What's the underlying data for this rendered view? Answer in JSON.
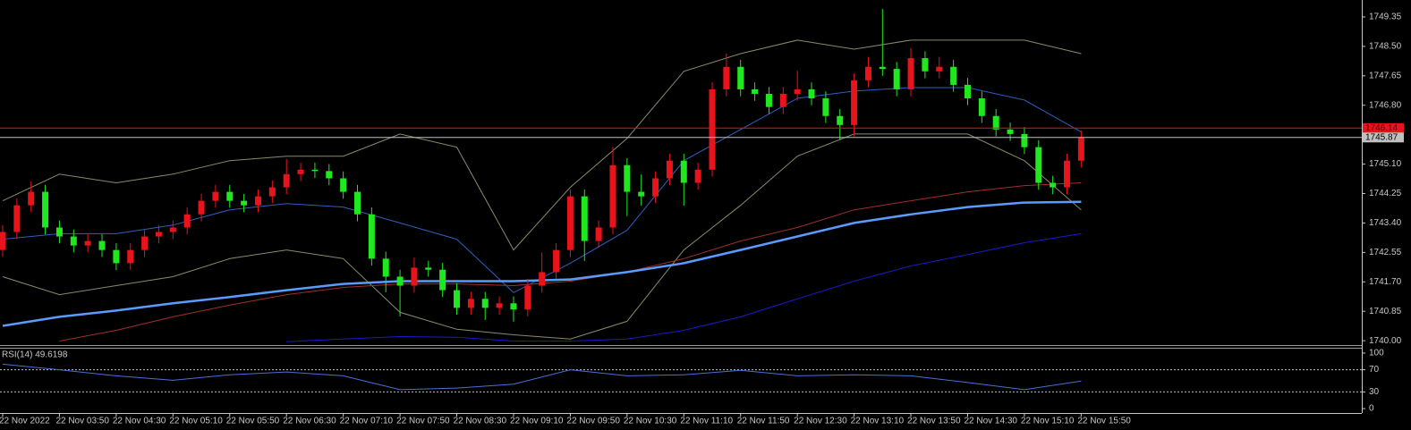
{
  "chart_data": {
    "type": "candlestick",
    "categories": [
      "22 Nov 2022",
      null,
      null,
      null,
      "22 Nov 03:50",
      null,
      null,
      null,
      "22 Nov 04:30",
      null,
      null,
      null,
      "22 Nov 05:10",
      null,
      null,
      null,
      "22 Nov 05:50",
      null,
      null,
      null,
      "22 Nov 06:30",
      null,
      null,
      null,
      "22 Nov 07:10",
      null,
      null,
      null,
      "22 Nov 07:50",
      null,
      null,
      null,
      "22 Nov 08:30",
      null,
      null,
      null,
      "22 Nov 09:10",
      null,
      null,
      null,
      "22 Nov 09:50",
      null,
      null,
      null,
      "22 Nov 10:30",
      null,
      null,
      null,
      "22 Nov 11:10",
      null,
      null,
      null,
      "22 Nov 11:50",
      null,
      null,
      null,
      "22 Nov 12:30",
      null,
      null,
      null,
      "22 Nov 13:10",
      null,
      null,
      null,
      "22 Nov 13:50",
      null,
      null,
      null,
      "22 Nov 14:30",
      null,
      null,
      null,
      "22 Nov 15:10",
      null,
      null,
      null,
      "22 Nov 15:50"
    ],
    "open": [
      1742.62,
      1743.14,
      1743.91,
      1744.3,
      1743.27,
      1743.01,
      1742.75,
      1742.88,
      1742.62,
      1742.24,
      1742.62,
      1743.01,
      1743.14,
      1743.27,
      1743.65,
      1744.04,
      1744.3,
      1744.04,
      1743.91,
      1744.17,
      1744.43,
      1744.81,
      1744.94,
      1744.9,
      1744.69,
      1744.3,
      1743.65,
      1742.37,
      1741.85,
      1741.59,
      1742.11,
      1742.05,
      1741.46,
      1740.95,
      1741.21,
      1740.95,
      1741.08,
      1740.9,
      1741.59,
      1741.98,
      1742.62,
      1744.17,
      1742.88,
      1743.27,
      1745.07,
      1744.3,
      1744.17,
      1744.69,
      1745.2,
      1744.56,
      1744.94,
      1747.26,
      1747.91,
      1747.26,
      1747.13,
      1746.75,
      1747.13,
      1747.26,
      1747.0,
      1746.49,
      1746.23,
      1747.52,
      1747.91,
      1747.85,
      1747.26,
      1748.16,
      1747.78,
      1747.91,
      1747.39,
      1747.0,
      1746.49,
      1746.1,
      1745.97,
      1745.59,
      1744.56,
      1744.43,
      1745.2
    ],
    "high": [
      1743.34,
      1744.11,
      1744.6,
      1744.5,
      1743.47,
      1743.21,
      1743.08,
      1743.08,
      1742.82,
      1742.82,
      1743.21,
      1743.34,
      1743.47,
      1743.85,
      1744.24,
      1744.5,
      1744.5,
      1744.24,
      1744.37,
      1744.63,
      1745.25,
      1745.14,
      1745.14,
      1745.1,
      1744.89,
      1744.5,
      1743.85,
      1742.57,
      1742.05,
      1742.4,
      1742.31,
      1742.25,
      1741.66,
      1741.41,
      1741.41,
      1741.28,
      1741.28,
      1741.79,
      1742.55,
      1742.82,
      1744.37,
      1744.37,
      1743.47,
      1745.6,
      1745.27,
      1744.8,
      1744.89,
      1745.4,
      1745.4,
      1745.14,
      1747.46,
      1748.3,
      1748.11,
      1747.46,
      1747.33,
      1747.33,
      1747.8,
      1747.46,
      1747.2,
      1746.69,
      1747.72,
      1748.2,
      1749.58,
      1748.05,
      1748.45,
      1748.36,
      1748.2,
      1748.11,
      1747.59,
      1747.2,
      1746.69,
      1746.3,
      1746.17,
      1745.79,
      1744.76,
      1745.4,
      1746.07
    ],
    "low": [
      1742.42,
      1742.94,
      1743.71,
      1743.07,
      1742.81,
      1742.55,
      1742.55,
      1742.42,
      1742.04,
      1742.04,
      1742.42,
      1742.81,
      1742.94,
      1743.07,
      1743.45,
      1743.84,
      1743.84,
      1743.71,
      1743.71,
      1743.97,
      1744.23,
      1744.61,
      1744.7,
      1744.49,
      1744.1,
      1743.45,
      1742.17,
      1741.4,
      1740.7,
      1741.39,
      1741.85,
      1741.26,
      1740.75,
      1740.75,
      1740.6,
      1740.75,
      1740.55,
      1740.7,
      1741.39,
      1741.78,
      1742.42,
      1742.3,
      1742.68,
      1743.07,
      1743.6,
      1743.9,
      1743.97,
      1744.49,
      1743.9,
      1744.36,
      1744.74,
      1747.06,
      1747.06,
      1746.93,
      1746.55,
      1746.55,
      1746.93,
      1746.8,
      1746.29,
      1745.8,
      1745.9,
      1747.32,
      1747.65,
      1747.06,
      1747.06,
      1747.58,
      1747.58,
      1747.19,
      1746.8,
      1746.29,
      1745.9,
      1745.77,
      1745.39,
      1744.36,
      1744.23,
      1744.23,
      1745.0
    ],
    "close": [
      1743.14,
      1743.91,
      1744.3,
      1743.27,
      1743.01,
      1742.75,
      1742.88,
      1742.62,
      1742.24,
      1742.62,
      1743.01,
      1743.14,
      1743.27,
      1743.65,
      1744.04,
      1744.3,
      1744.04,
      1743.91,
      1744.17,
      1744.43,
      1744.81,
      1744.94,
      1744.9,
      1744.69,
      1744.3,
      1743.65,
      1742.37,
      1741.85,
      1741.59,
      1742.11,
      1742.05,
      1741.46,
      1740.95,
      1741.21,
      1740.95,
      1741.08,
      1740.9,
      1741.59,
      1741.98,
      1742.62,
      1744.17,
      1742.88,
      1743.27,
      1745.07,
      1744.3,
      1744.17,
      1744.69,
      1745.2,
      1744.56,
      1744.94,
      1747.26,
      1747.91,
      1747.26,
      1747.13,
      1746.75,
      1747.13,
      1747.26,
      1747.0,
      1746.49,
      1746.23,
      1747.52,
      1747.91,
      1747.85,
      1747.26,
      1748.16,
      1747.78,
      1747.91,
      1747.39,
      1747.0,
      1746.49,
      1746.1,
      1745.97,
      1745.59,
      1744.56,
      1744.43,
      1745.2,
      1745.87
    ],
    "up_color": "#e8131b",
    "down_color": "#1fe81f",
    "ylim": [
      1739.9,
      1749.84
    ],
    "yticks": [
      {
        "value": 1749.35,
        "label": "1749.35"
      },
      {
        "value": 1748.5,
        "label": "1748.50"
      },
      {
        "value": 1747.65,
        "label": "1747.65"
      },
      {
        "value": 1746.8,
        "label": "1746.80"
      },
      {
        "value": 1745.1,
        "label": "1745.10"
      },
      {
        "value": 1744.25,
        "label": "1744.25"
      },
      {
        "value": 1743.4,
        "label": "1743.40"
      },
      {
        "value": 1742.55,
        "label": "1742.55"
      },
      {
        "value": 1741.7,
        "label": "1741.70"
      },
      {
        "value": 1740.85,
        "label": "1740.85"
      },
      {
        "value": 1740,
        "label": "1740.00"
      }
    ],
    "overlay_x": [
      0,
      4,
      8,
      12,
      16,
      20,
      24,
      28,
      32,
      36,
      40,
      44,
      48,
      52,
      56,
      60,
      64,
      68,
      72,
      76
    ],
    "overlays": [
      {
        "color": "#8a8a6a",
        "style": "thin",
        "values": [
          1744.04,
          1744.81,
          1744.56,
          1744.81,
          1745.2,
          1745.33,
          1745.33,
          1745.97,
          1745.59,
          1742.62,
          1744.43,
          1745.84,
          1747.78,
          1748.29,
          1748.68,
          1748.42,
          1748.68,
          1748.68,
          1748.68,
          1748.29
        ]
      },
      {
        "color": "#8a8a6a",
        "style": "thin",
        "values": [
          1741.85,
          1741.33,
          1741.59,
          1741.85,
          1742.37,
          1742.62,
          1742.37,
          1740.82,
          1740.33,
          1740.17,
          1740.05,
          1740.56,
          1742.62,
          1743.91,
          1745.33,
          1745.97,
          1745.97,
          1745.97,
          1745.2,
          1743.78
        ]
      },
      {
        "color": "#2f5fbf",
        "style": "thin",
        "values": [
          1742.93,
          1743.09,
          1743.09,
          1743.34,
          1743.78,
          1743.96,
          1743.86,
          1743.4,
          1742.93,
          1741.39,
          1742.24,
          1743.19,
          1745.2,
          1746.1,
          1747.0,
          1747.21,
          1747.31,
          1747.31,
          1746.95,
          1746.03
        ]
      },
      {
        "color": "#a0302a",
        "style": "thin",
        "values": [
          null,
          1739.99,
          1740.3,
          1740.69,
          1741.03,
          1741.33,
          1741.54,
          1741.64,
          1741.64,
          1741.59,
          1741.72,
          1741.98,
          1742.37,
          1742.88,
          1743.27,
          1743.78,
          1744.04,
          1744.3,
          1744.48,
          1744.56
        ]
      },
      {
        "color": "#1a1acd",
        "style": "thin",
        "values": [
          null,
          null,
          null,
          null,
          null,
          1739.97,
          1740.05,
          1740.12,
          1740.1,
          1739.99,
          1739.99,
          1740.05,
          1740.3,
          1740.69,
          1741.21,
          1741.72,
          1742.16,
          1742.49,
          1742.83,
          1743.09
        ]
      },
      {
        "color": "#5b9bff",
        "style": "thick",
        "values": [
          1740.43,
          1740.69,
          1740.87,
          1741.08,
          1741.26,
          1741.46,
          1741.64,
          1741.72,
          1741.72,
          1741.72,
          1741.77,
          1741.98,
          1742.24,
          1742.62,
          1743.01,
          1743.4,
          1743.65,
          1743.86,
          1743.99,
          1744.01
        ]
      }
    ],
    "hlines": [
      {
        "value": 1746.14,
        "label": "1746.14",
        "color": "#e8131b",
        "text_color": "#5a0000"
      },
      {
        "value": 1745.87,
        "label": "1745.87",
        "color": "#c0c0c0",
        "text_color": "#000000"
      }
    ],
    "rsi": {
      "title": "RSI(14) 49.6198",
      "color": "#4a6fd8",
      "ylim": [
        -8,
        108
      ],
      "yticks": [
        100,
        70,
        30,
        0
      ],
      "levels": [
        70,
        30
      ],
      "values": [
        80,
        70,
        59,
        51,
        61,
        66,
        59,
        34,
        37,
        44,
        70,
        59,
        61,
        69,
        59,
        61,
        59,
        47,
        34,
        49.6198
      ]
    }
  }
}
